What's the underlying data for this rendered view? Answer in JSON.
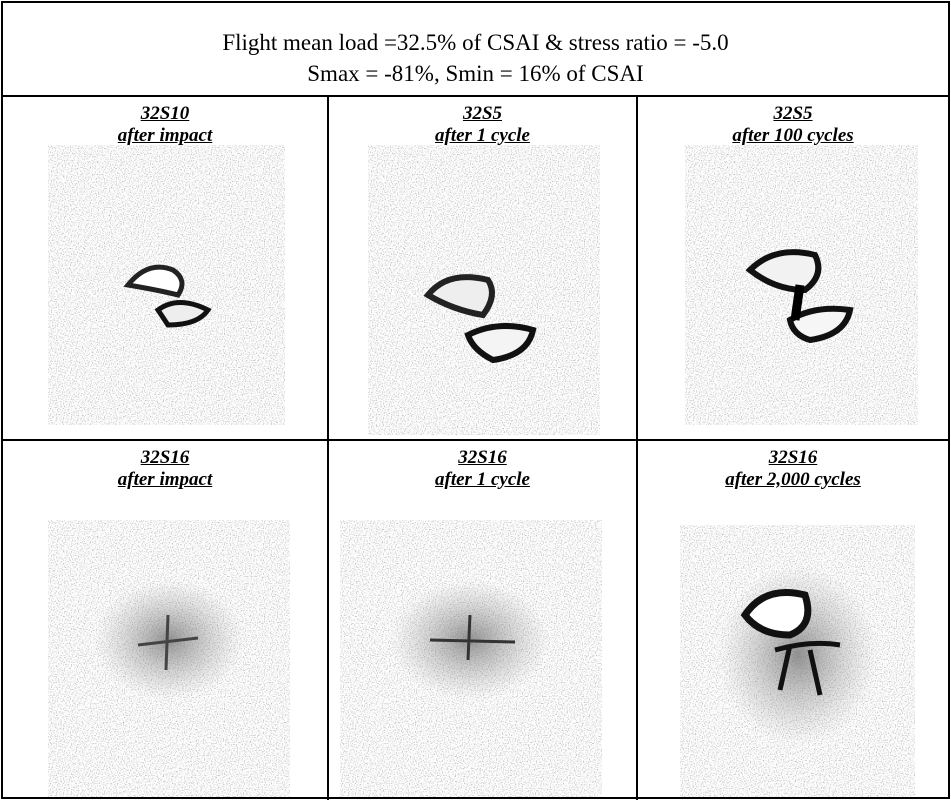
{
  "header": {
    "line1": "Flight mean load =32.5% of CSAI & stress ratio = -5.0",
    "line2": "Smax = -81%, Smin = 16% of CSAI"
  },
  "cells": [
    {
      "specimen": "32S10",
      "condition": "after impact"
    },
    {
      "specimen": "32S5",
      "condition": "after 1 cycle"
    },
    {
      "specimen": "32S5",
      "condition": "after 100 cycles"
    },
    {
      "specimen": "32S16",
      "condition": "after impact"
    },
    {
      "specimen": "32S16",
      "condition": "after 1 cycle"
    },
    {
      "specimen": "32S16",
      "condition": "after 2,000 cycles"
    }
  ]
}
